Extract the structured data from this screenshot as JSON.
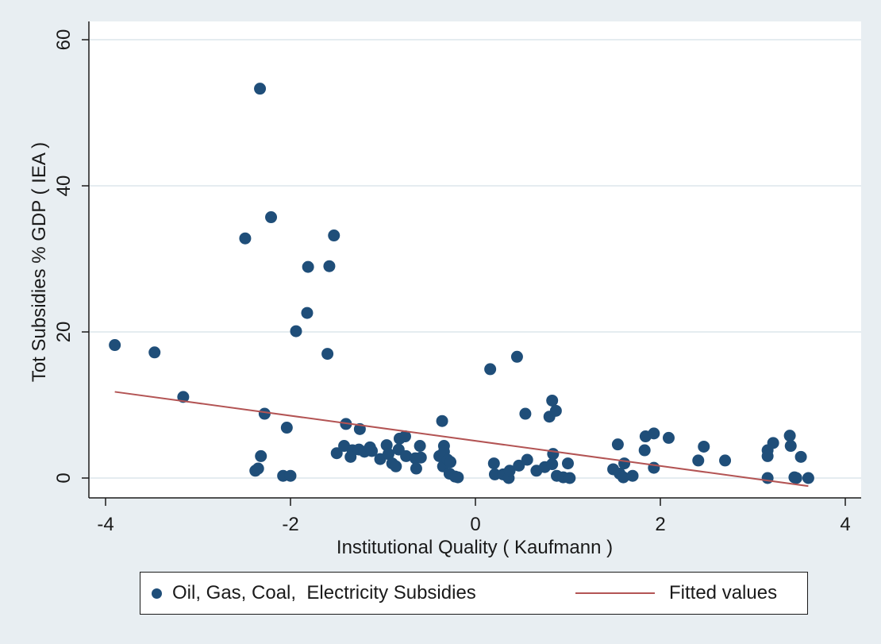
{
  "colors": {
    "figure_background": "#e8eef2",
    "plot_background": "#ffffff",
    "gridline": "#e5ecf0",
    "marker": "#1f4e79",
    "fit_line": "#b35454",
    "axis": "#1a1a1a"
  },
  "chart_data": {
    "type": "scatter",
    "title": "",
    "xlabel": "Institutional Quality ( Kaufmann )",
    "ylabel": "Tot Subsidies % GDP ( IEA )",
    "xlim": [
      -4,
      4
    ],
    "ylim": [
      0,
      60
    ],
    "x_ticks": [
      -4,
      -2,
      0,
      2,
      4
    ],
    "x_tick_labels": [
      "-4",
      "-2",
      "0",
      "2",
      "4"
    ],
    "y_ticks": [
      0,
      20,
      40,
      60
    ],
    "y_tick_labels": [
      "0",
      "20",
      "40",
      "60"
    ],
    "grid": "horizontal",
    "legend_position": "bottom",
    "series": [
      {
        "name": "Oil, Gas, Coal,  Electricity Subsidies",
        "type": "scatter",
        "points": [
          [
            -3.9,
            18.2
          ],
          [
            -3.47,
            17.2
          ],
          [
            -3.16,
            11.1
          ],
          [
            -2.49,
            32.8
          ],
          [
            -2.33,
            53.3
          ],
          [
            -2.21,
            35.7
          ],
          [
            -2.28,
            8.8
          ],
          [
            -2.32,
            3.0
          ],
          [
            -2.38,
            1.0
          ],
          [
            -2.35,
            1.3
          ],
          [
            -2.08,
            0.3
          ],
          [
            -2.0,
            0.3
          ],
          [
            -2.04,
            6.9
          ],
          [
            -1.94,
            20.1
          ],
          [
            -1.82,
            22.6
          ],
          [
            -1.81,
            28.9
          ],
          [
            -1.58,
            29.0
          ],
          [
            -1.6,
            17.0
          ],
          [
            -1.53,
            33.2
          ],
          [
            -1.5,
            3.4
          ],
          [
            -1.4,
            7.4
          ],
          [
            -1.42,
            4.4
          ],
          [
            -1.33,
            3.8
          ],
          [
            -1.35,
            2.9
          ],
          [
            -1.25,
            6.7
          ],
          [
            -1.26,
            3.9
          ],
          [
            -1.2,
            3.6
          ],
          [
            -1.14,
            4.2
          ],
          [
            -1.12,
            3.7
          ],
          [
            -1.03,
            2.6
          ],
          [
            -0.96,
            4.5
          ],
          [
            -0.94,
            3.3
          ],
          [
            -0.9,
            2.0
          ],
          [
            -0.86,
            1.6
          ],
          [
            -0.82,
            5.4
          ],
          [
            -0.83,
            3.9
          ],
          [
            -0.76,
            5.7
          ],
          [
            -0.75,
            3.0
          ],
          [
            -0.65,
            2.7
          ],
          [
            -0.64,
            1.3
          ],
          [
            -0.6,
            4.4
          ],
          [
            -0.59,
            2.8
          ],
          [
            -0.36,
            7.8
          ],
          [
            -0.39,
            3.0
          ],
          [
            -0.34,
            4.4
          ],
          [
            -0.34,
            3.6
          ],
          [
            -0.35,
            1.6
          ],
          [
            -0.3,
            2.5
          ],
          [
            -0.27,
            2.2
          ],
          [
            -0.28,
            0.6
          ],
          [
            -0.22,
            0.2
          ],
          [
            -0.19,
            0.1
          ],
          [
            0.16,
            14.9
          ],
          [
            0.2,
            2.0
          ],
          [
            0.21,
            0.5
          ],
          [
            0.3,
            0.5
          ],
          [
            0.35,
            0.6
          ],
          [
            0.36,
            0.0
          ],
          [
            0.37,
            1.0
          ],
          [
            0.45,
            16.6
          ],
          [
            0.47,
            1.7
          ],
          [
            0.54,
            8.8
          ],
          [
            0.56,
            2.5
          ],
          [
            0.66,
            1.0
          ],
          [
            0.75,
            1.5
          ],
          [
            0.8,
            8.4
          ],
          [
            0.83,
            10.6
          ],
          [
            0.84,
            3.3
          ],
          [
            0.83,
            1.9
          ],
          [
            0.87,
            9.2
          ],
          [
            0.88,
            0.3
          ],
          [
            0.95,
            0.1
          ],
          [
            1.0,
            2.0
          ],
          [
            1.02,
            0.0
          ],
          [
            1.49,
            1.2
          ],
          [
            1.54,
            4.6
          ],
          [
            1.56,
            0.6
          ],
          [
            1.6,
            0.1
          ],
          [
            1.61,
            2.0
          ],
          [
            1.7,
            0.3
          ],
          [
            1.83,
            3.8
          ],
          [
            1.84,
            5.7
          ],
          [
            1.93,
            6.1
          ],
          [
            1.93,
            1.4
          ],
          [
            2.09,
            5.5
          ],
          [
            2.41,
            2.4
          ],
          [
            2.47,
            4.3
          ],
          [
            2.7,
            2.4
          ],
          [
            3.16,
            3.8
          ],
          [
            3.16,
            3.0
          ],
          [
            3.16,
            0.0
          ],
          [
            3.22,
            4.8
          ],
          [
            3.4,
            5.8
          ],
          [
            3.41,
            4.4
          ],
          [
            3.45,
            0.1
          ],
          [
            3.47,
            0.0
          ],
          [
            3.52,
            2.9
          ],
          [
            3.6,
            0.0
          ]
        ]
      },
      {
        "name": "Fitted values",
        "type": "line",
        "points": [
          [
            -3.9,
            11.8
          ],
          [
            3.6,
            -1.1
          ]
        ]
      }
    ]
  },
  "legend": {
    "scatter_label": "Oil, Gas, Coal,  Electricity Subsidies",
    "line_label": "Fitted values"
  }
}
